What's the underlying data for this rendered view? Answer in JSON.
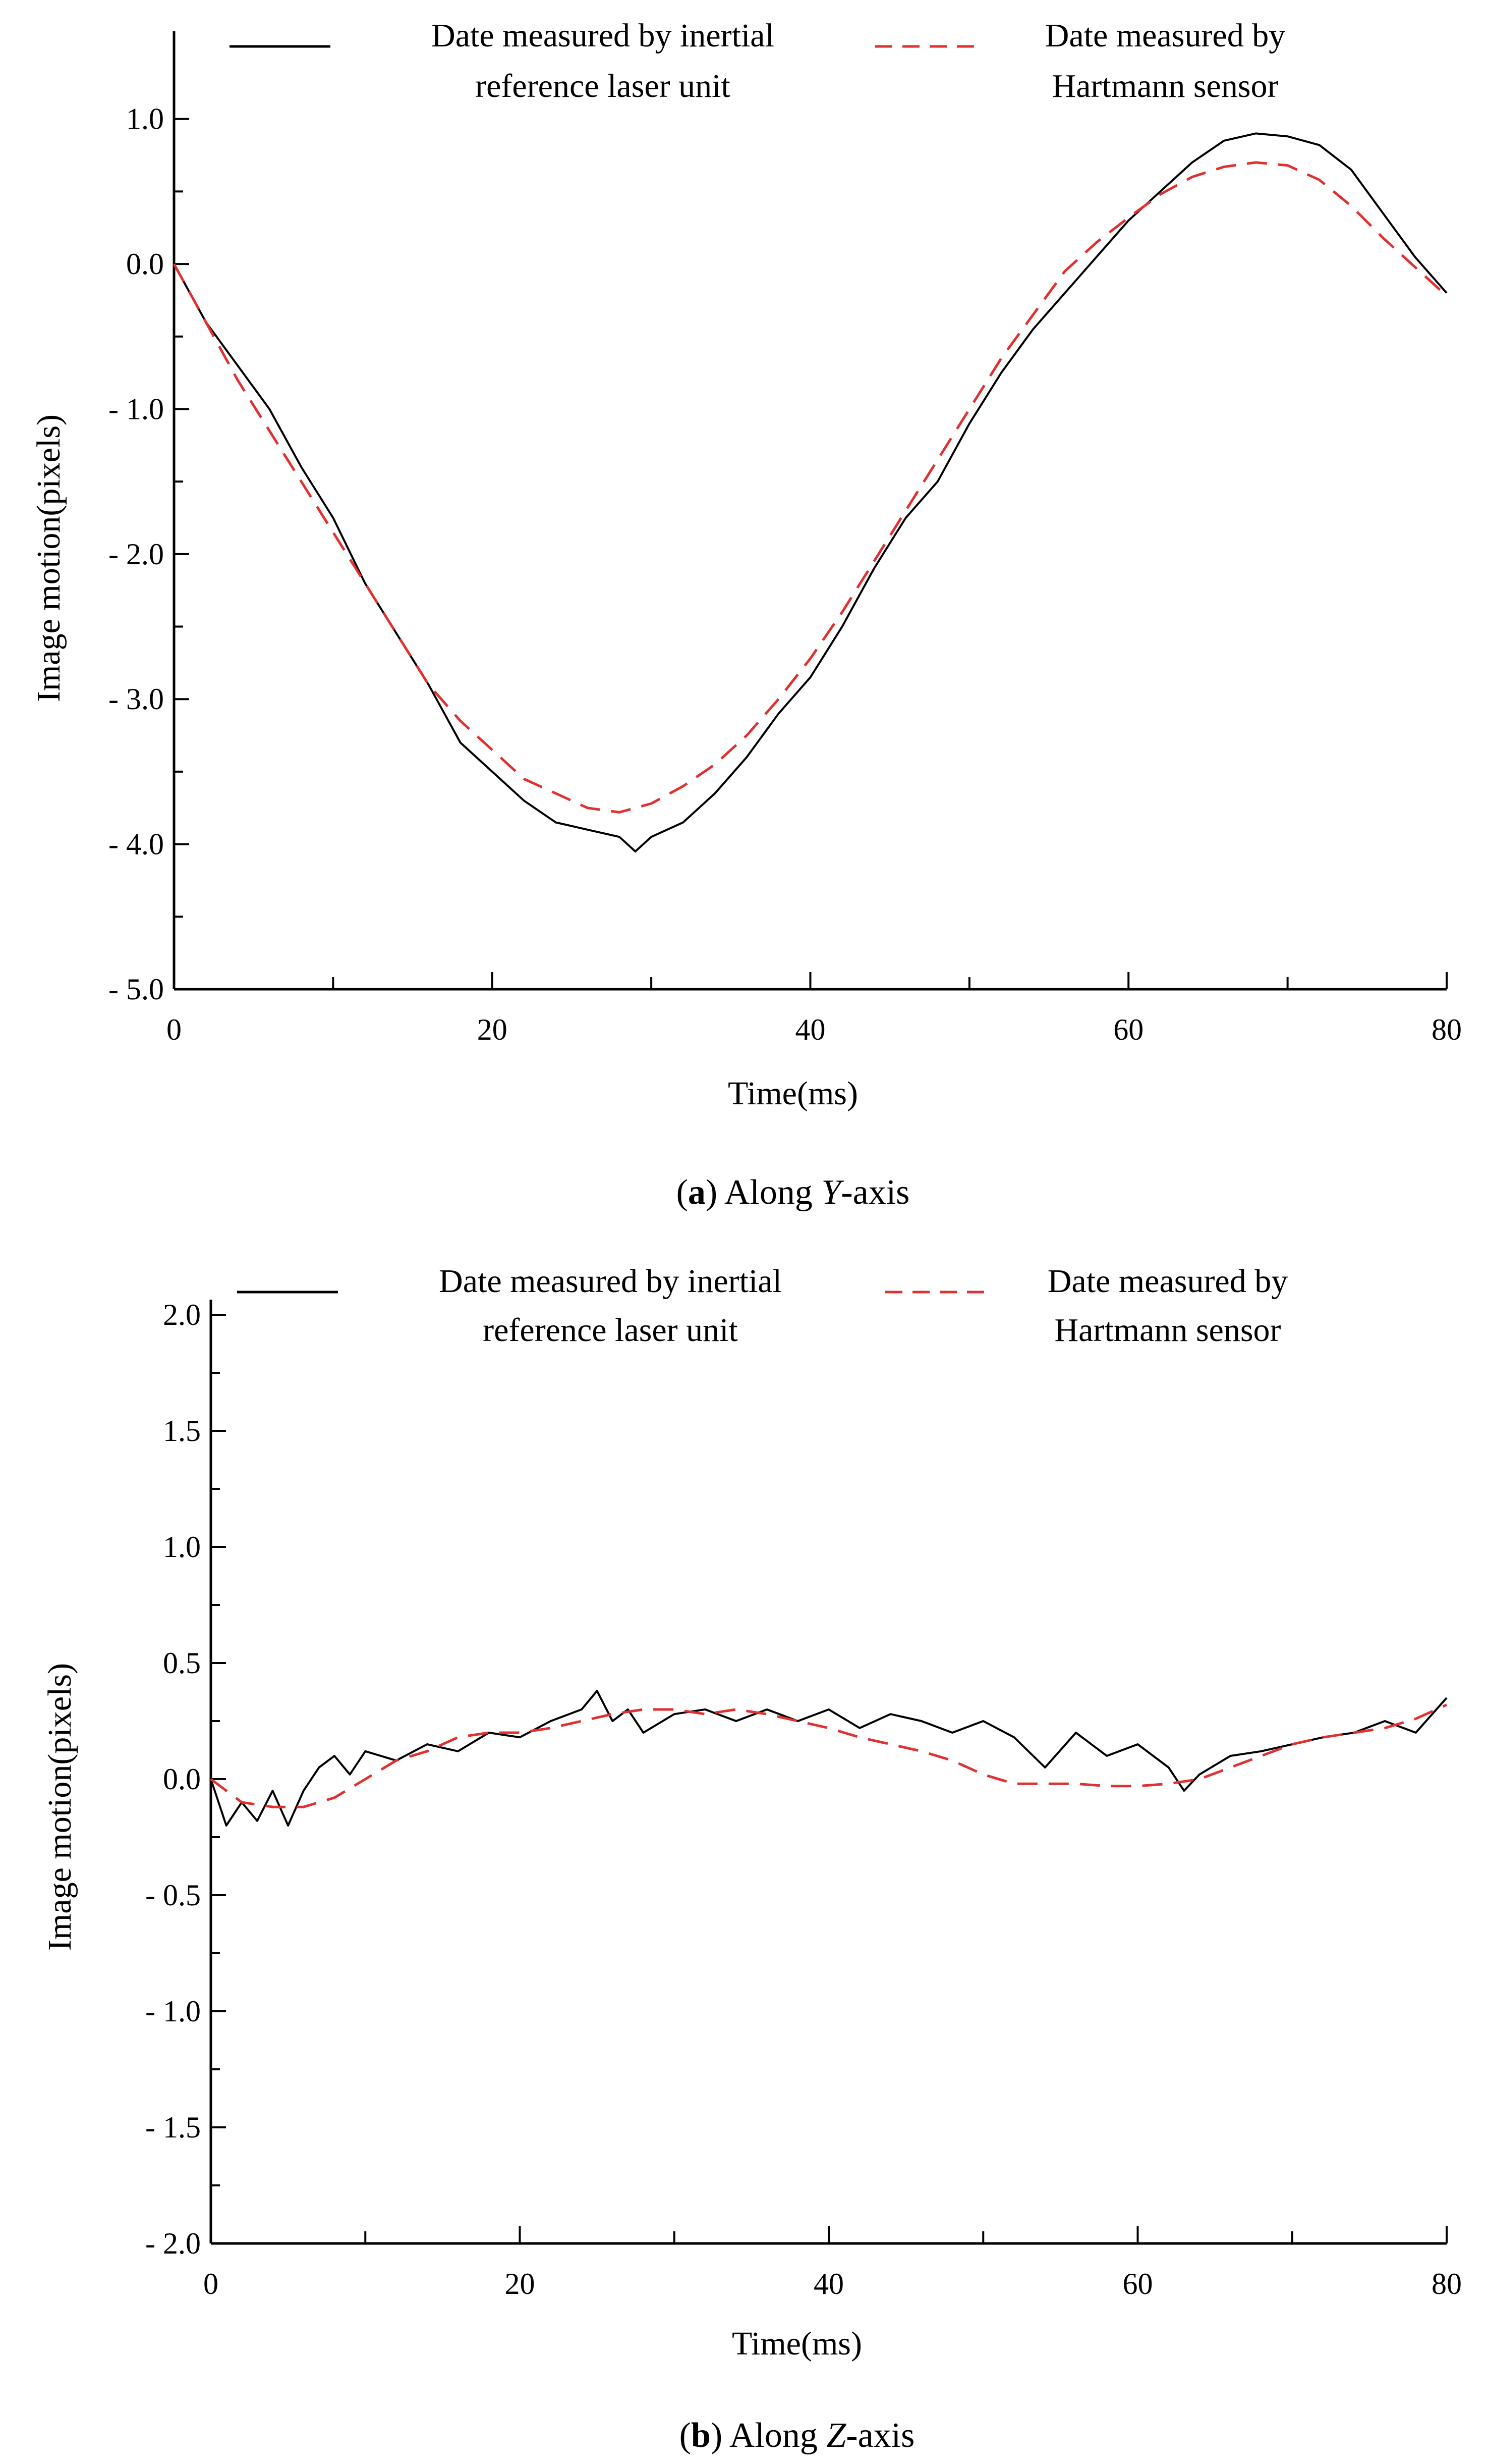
{
  "chart_data": [
    {
      "type": "line",
      "caption": {
        "letter": "a",
        "rest": ") Along ",
        "axis_letter": "Y",
        "suffix": "-axis"
      },
      "xlabel": "Time(ms)",
      "ylabel": "Image motion(pixels)",
      "xlim": [
        0,
        80
      ],
      "ylim": [
        -5.0,
        1.5
      ],
      "x_ticks": [
        0,
        20,
        40,
        60,
        80
      ],
      "y_ticks": [
        1.0,
        0.0,
        -1.0,
        -2.0,
        -3.0,
        -4.0,
        -5.0
      ],
      "x_tick_labels": [
        "0",
        "20",
        "40",
        "60",
        "80"
      ],
      "y_tick_labels": [
        "1.0",
        "0.0",
        "- 1.0",
        "- 2.0",
        "- 3.0",
        "- 4.0",
        "- 5.0"
      ],
      "legend_position": "top",
      "series": [
        {
          "name_line1": "Date measured by inertial",
          "name_line2": "reference laser unit",
          "color": "#000000",
          "style": "solid",
          "x": [
            0,
            2,
            4,
            6,
            8,
            10,
            12,
            14,
            16,
            18,
            20,
            22,
            24,
            26,
            28,
            29,
            30,
            32,
            34,
            36,
            38,
            40,
            42,
            44,
            46,
            48,
            50,
            52,
            54,
            56,
            58,
            60,
            62,
            64,
            66,
            68,
            70,
            72,
            74,
            76,
            78,
            80
          ],
          "y": [
            0.0,
            -0.4,
            -0.7,
            -1.0,
            -1.4,
            -1.75,
            -2.2,
            -2.55,
            -2.9,
            -3.3,
            -3.5,
            -3.7,
            -3.85,
            -3.9,
            -3.95,
            -4.05,
            -3.95,
            -3.85,
            -3.65,
            -3.4,
            -3.1,
            -2.85,
            -2.5,
            -2.1,
            -1.75,
            -1.5,
            -1.1,
            -0.75,
            -0.45,
            -0.2,
            0.05,
            0.3,
            0.5,
            0.7,
            0.85,
            0.9,
            0.88,
            0.82,
            0.65,
            0.35,
            0.05,
            -0.2
          ]
        },
        {
          "name_line1": "Date measured by",
          "name_line2": "Hartmann sensor",
          "color": "#e03030",
          "style": "dashed",
          "x": [
            0,
            2,
            4,
            6,
            8,
            10,
            12,
            14,
            16,
            18,
            20,
            22,
            24,
            26,
            28,
            30,
            32,
            34,
            36,
            38,
            40,
            42,
            44,
            46,
            48,
            50,
            52,
            54,
            56,
            58,
            60,
            62,
            64,
            66,
            68,
            70,
            72,
            74,
            76,
            78,
            80
          ],
          "y": [
            0.0,
            -0.4,
            -0.8,
            -1.15,
            -1.5,
            -1.85,
            -2.2,
            -2.55,
            -2.9,
            -3.15,
            -3.35,
            -3.55,
            -3.65,
            -3.75,
            -3.78,
            -3.72,
            -3.6,
            -3.45,
            -3.25,
            -3.0,
            -2.72,
            -2.4,
            -2.05,
            -1.7,
            -1.35,
            -1.0,
            -0.65,
            -0.35,
            -0.05,
            0.15,
            0.32,
            0.48,
            0.6,
            0.67,
            0.7,
            0.68,
            0.58,
            0.4,
            0.18,
            -0.02,
            -0.22
          ]
        }
      ]
    },
    {
      "type": "line",
      "caption": {
        "letter": "b",
        "rest": ") Along ",
        "axis_letter": "Z",
        "suffix": "-axis"
      },
      "xlabel": "Time(ms)",
      "ylabel": "Image motion(pixels)",
      "xlim": [
        0,
        80
      ],
      "ylim": [
        -2.0,
        2.0
      ],
      "x_ticks": [
        0,
        20,
        40,
        60,
        80
      ],
      "y_ticks": [
        2.0,
        1.5,
        1.0,
        0.5,
        0.0,
        -0.5,
        -1.0,
        -1.5,
        -2.0
      ],
      "x_tick_labels": [
        "0",
        "20",
        "40",
        "60",
        "80"
      ],
      "y_tick_labels": [
        "2.0",
        "1.5",
        "1.0",
        "0.5",
        "0.0",
        "- 0.5",
        "- 1.0",
        "- 1.5",
        "- 2.0"
      ],
      "legend_position": "top",
      "series": [
        {
          "name_line1": "Date measured by inertial",
          "name_line2": "reference laser unit",
          "color": "#000000",
          "style": "solid",
          "x": [
            0,
            1,
            2,
            3,
            4,
            5,
            6,
            7,
            8,
            9,
            10,
            12,
            14,
            16,
            18,
            20,
            22,
            24,
            25,
            26,
            27,
            28,
            30,
            32,
            34,
            36,
            38,
            40,
            42,
            44,
            46,
            48,
            50,
            52,
            54,
            56,
            58,
            60,
            62,
            63,
            64,
            66,
            68,
            70,
            72,
            74,
            76,
            78,
            80
          ],
          "y": [
            0.0,
            -0.2,
            -0.1,
            -0.18,
            -0.05,
            -0.2,
            -0.05,
            0.05,
            0.1,
            0.02,
            0.12,
            0.08,
            0.15,
            0.12,
            0.2,
            0.18,
            0.25,
            0.3,
            0.38,
            0.25,
            0.3,
            0.2,
            0.28,
            0.3,
            0.25,
            0.3,
            0.25,
            0.3,
            0.22,
            0.28,
            0.25,
            0.2,
            0.25,
            0.18,
            0.05,
            0.2,
            0.1,
            0.15,
            0.05,
            -0.05,
            0.02,
            0.1,
            0.12,
            0.15,
            0.18,
            0.2,
            0.25,
            0.2,
            0.35
          ]
        },
        {
          "name_line1": "Date measured by",
          "name_line2": "Hartmann sensor",
          "color": "#e03030",
          "style": "dashed",
          "x": [
            0,
            2,
            4,
            6,
            8,
            10,
            12,
            14,
            16,
            18,
            20,
            22,
            24,
            26,
            28,
            30,
            32,
            34,
            36,
            38,
            40,
            42,
            44,
            46,
            48,
            50,
            52,
            54,
            56,
            58,
            60,
            62,
            64,
            66,
            68,
            70,
            72,
            74,
            76,
            78,
            80
          ],
          "y": [
            0.0,
            -0.1,
            -0.12,
            -0.12,
            -0.08,
            0.0,
            0.08,
            0.12,
            0.18,
            0.2,
            0.2,
            0.22,
            0.25,
            0.28,
            0.3,
            0.3,
            0.28,
            0.3,
            0.28,
            0.25,
            0.22,
            0.18,
            0.15,
            0.12,
            0.08,
            0.02,
            -0.02,
            -0.02,
            -0.02,
            -0.03,
            -0.03,
            -0.02,
            0.0,
            0.05,
            0.1,
            0.15,
            0.18,
            0.2,
            0.22,
            0.26,
            0.32
          ]
        }
      ]
    }
  ]
}
